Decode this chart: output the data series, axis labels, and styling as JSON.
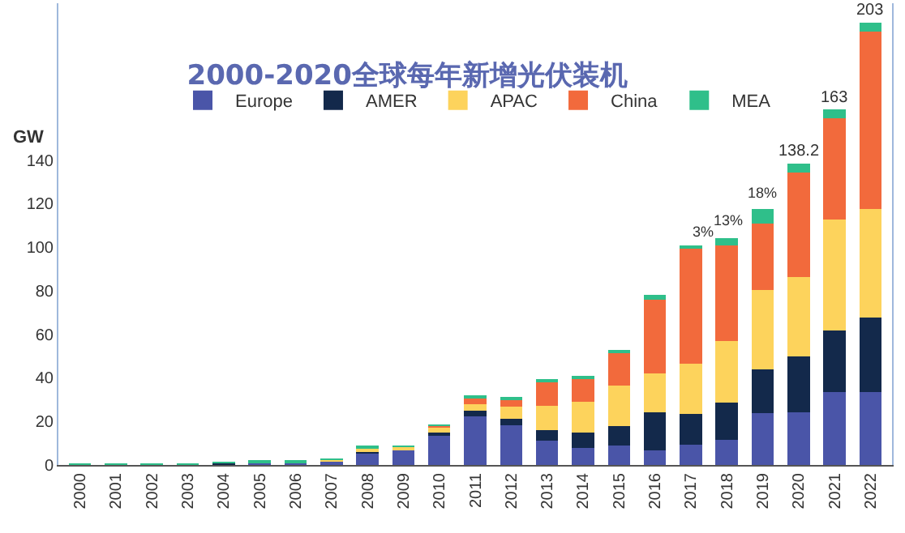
{
  "chart_data": {
    "type": "bar",
    "stacked": true,
    "title": "2000-2020全球每年新增光伏装机",
    "ylabel": "GW",
    "categories": [
      "2000",
      "2001",
      "2002",
      "2003",
      "2004",
      "2005",
      "2006",
      "2007",
      "2008",
      "2009",
      "2010",
      "2011",
      "2012",
      "2013",
      "2014",
      "2015",
      "2016",
      "2017",
      "2018",
      "2019",
      "2020",
      "2021",
      "2022"
    ],
    "series": [
      {
        "name": "Europe",
        "color": "#4a55a8",
        "values": [
          0.1,
          0.1,
          0.1,
          0.2,
          0.7,
          1,
          1,
          2,
          5.6,
          7.3,
          13.6,
          22.5,
          18.2,
          11.1,
          8,
          9,
          6.8,
          9.4,
          11.4,
          23.7,
          24,
          33.4,
          33.4
        ]
      },
      {
        "name": "AMER",
        "color": "#13294b",
        "values": [
          null,
          null,
          null,
          0.1,
          0.1,
          0.1,
          0.1,
          0.2,
          0.4,
          null,
          1.2,
          2.4,
          3.1,
          4.8,
          6.8,
          9,
          17.2,
          14,
          17.4,
          20.1,
          25.9,
          28.3,
          34.4
        ]
      },
      {
        "name": "APAC",
        "color": "#fdd35c",
        "values": [
          0.1,
          0.1,
          0.2,
          0.2,
          0.2,
          0.3,
          0.3,
          0.2,
          2.0,
          1.2,
          2.9,
          3.1,
          5.6,
          11.4,
          14.3,
          18.6,
          17.9,
          23.2,
          28.1,
          36.6,
          36.3,
          51.1,
          49.9
        ]
      },
      {
        "name": "China",
        "color": "#f26a3c",
        "values": [
          null,
          null,
          null,
          null,
          null,
          null,
          null,
          null,
          null,
          null,
          0.5,
          2.9,
          3.4,
          10.7,
          10.4,
          15,
          34.1,
          52.6,
          43.8,
          30.3,
          48,
          46.5,
          81.3
        ]
      },
      {
        "name": "MEA",
        "color": "#2fbf8a",
        "values": [
          0.1,
          0.1,
          0.1,
          0.1,
          0.1,
          0.1,
          0.2,
          0.1,
          0.2,
          0.1,
          0.2,
          0.7,
          0.7,
          0.7,
          1.5,
          1.2,
          2.2,
          1.5,
          3.4,
          7,
          4,
          4,
          4
        ]
      }
    ],
    "ylim": [
      0,
      212
    ],
    "yticks": [
      0,
      20,
      40,
      60,
      80,
      100,
      120,
      140
    ],
    "legend": "top",
    "annotations": [
      "3%",
      "13%",
      "18%",
      {
        "text": "138.2",
        "x": "2020",
        "y": 138.2
      },
      {
        "text": "163",
        "x": "2021",
        "y": 163
      },
      {
        "text": "203",
        "x": "2022",
        "y": 203
      }
    ]
  }
}
